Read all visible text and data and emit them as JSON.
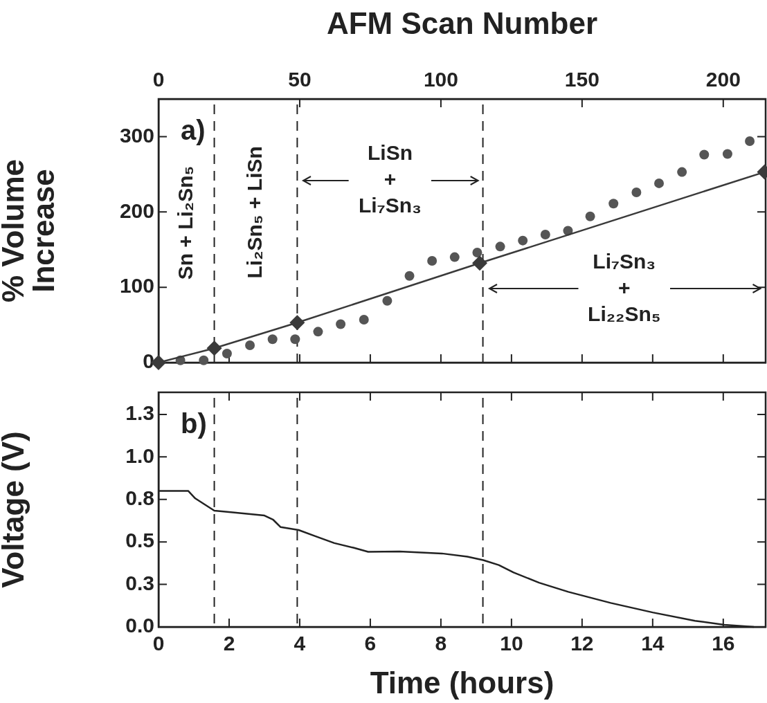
{
  "chart_data": [
    {
      "type": "line",
      "x2label": "AFM Scan Number",
      "ylabel": "% Volume Increase",
      "xlim": [
        0,
        17.2
      ],
      "xticks": [
        0,
        2,
        4,
        6,
        8,
        10,
        12,
        14,
        16
      ],
      "x2lim": [
        0,
        215
      ],
      "x2ticks": [
        0,
        50,
        100,
        150,
        200
      ],
      "ylim": [
        0,
        350
      ],
      "yticks": [
        0,
        100,
        200,
        300
      ],
      "tick_labels": "y",
      "grid": false,
      "series": [
        {
          "type": "line",
          "marker": "diamond",
          "line_style": "solid",
          "color": "#3a3a3a",
          "x": [
            0,
            1.58,
            3.93,
            9.1,
            17.17
          ],
          "values": [
            0,
            19,
            53,
            132,
            253
          ]
        },
        {
          "type": "scatter",
          "marker": "circle",
          "color": "#555555",
          "x": [
            0.62,
            1.28,
            1.94,
            2.59,
            3.23,
            3.87,
            4.52,
            5.16,
            5.82,
            6.48,
            7.11,
            7.75,
            8.39,
            9.03,
            9.68,
            10.32,
            10.96,
            11.6,
            12.23,
            12.89,
            13.54,
            14.18,
            14.83,
            15.46,
            16.12,
            16.75
          ],
          "values": [
            3,
            3,
            12,
            23,
            31,
            31,
            41,
            51,
            57,
            82,
            115,
            135,
            140,
            146,
            154,
            162,
            170,
            175,
            194,
            211,
            226,
            238,
            253,
            276,
            277,
            294
          ]
        }
      ],
      "ref_lines": [
        {
          "axis": "x",
          "value": 1.58,
          "line_style": "dashed"
        },
        {
          "axis": "x",
          "value": 3.93,
          "line_style": "dashed"
        },
        {
          "axis": "x",
          "value": 9.19,
          "line_style": "dashed"
        }
      ],
      "annotations": [
        "a)",
        "Sn + Li₂Sn₅",
        "Li₂Sn₅ + LiSn",
        "LiSn\n+\nLi₇Sn₃",
        "Li₇Sn₃\n+\nLi₂₂Sn₅"
      ]
    },
    {
      "type": "line",
      "xlabel": "Time (hours)",
      "ylabel": "Voltage (V)",
      "xlim": [
        0,
        17.2
      ],
      "xticks": [
        0,
        2,
        4,
        6,
        8,
        10,
        12,
        14,
        16
      ],
      "ylim": [
        0,
        1.38
      ],
      "yticks": [
        {
          "value": 0,
          "label": "0.0"
        },
        {
          "value": 0.25,
          "label": "0.3"
        },
        {
          "value": 0.5,
          "label": "0.5"
        },
        {
          "value": 0.75,
          "label": "0.8"
        },
        {
          "value": 1,
          "label": "1.0"
        },
        {
          "value": 1.25,
          "label": "1.3"
        }
      ],
      "grid": false,
      "series": [
        {
          "type": "line",
          "marker": "none",
          "line_style": "solid",
          "color": "#222222",
          "x": [
            0,
            0.84,
            1.04,
            1.58,
            2.05,
            3.0,
            3.25,
            3.46,
            3.97,
            4.44,
            4.98,
            5.52,
            5.94,
            6.83,
            8.03,
            8.75,
            9.2,
            9.64,
            10.06,
            10.78,
            11.61,
            12.81,
            14.0,
            15.2,
            16.03,
            16.87
          ],
          "values": [
            0.8,
            0.8,
            0.756,
            0.684,
            0.675,
            0.655,
            0.63,
            0.587,
            0.57,
            0.534,
            0.493,
            0.466,
            0.442,
            0.444,
            0.432,
            0.413,
            0.393,
            0.364,
            0.32,
            0.26,
            0.206,
            0.141,
            0.085,
            0.036,
            0.012,
            0
          ]
        }
      ],
      "ref_lines": [
        {
          "axis": "x",
          "value": 1.58,
          "line_style": "dashed"
        },
        {
          "axis": "x",
          "value": 3.93,
          "line_style": "dashed"
        },
        {
          "axis": "x",
          "value": 9.19,
          "line_style": "dashed"
        }
      ],
      "annotations": [
        "b)"
      ]
    }
  ]
}
